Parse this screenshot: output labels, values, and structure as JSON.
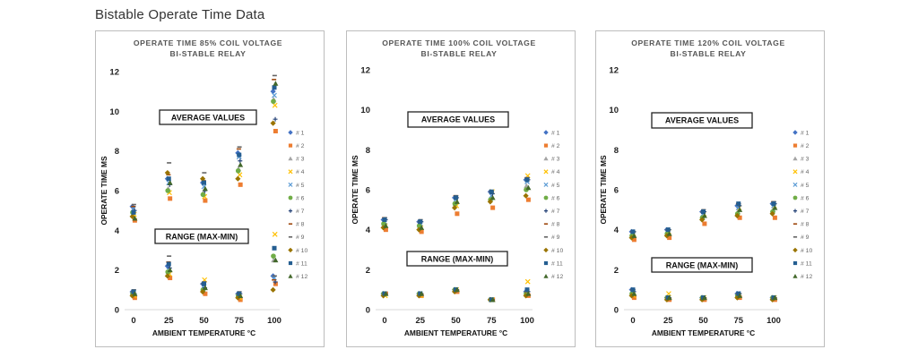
{
  "page_title": "Bistable Operate Time Data",
  "chart_data": [
    {
      "type": "scatter",
      "title": [
        "OPERATE TIME 85% COIL VOLTAGE",
        "BI-STABLE RELAY"
      ],
      "xlabel": "AMBIENT TEMPERATURE °C",
      "ylabel": "OPERATE TIME MS",
      "x": [
        0,
        25,
        50,
        75,
        100
      ],
      "xlim": [
        0,
        100
      ],
      "ylim": [
        0,
        12
      ],
      "yticks": [
        0,
        2,
        4,
        6,
        8,
        10,
        12
      ],
      "annotations": [
        "AVERAGE VALUES",
        "RANGE (MAX-MIN)"
      ],
      "series": [
        {
          "name": "# 1",
          "values": [
            5.2,
            6.6,
            6.4,
            7.9,
            11.0
          ],
          "range": [
            0.9,
            2.2,
            1.3,
            0.8,
            1.7
          ]
        },
        {
          "name": "# 2",
          "values": [
            4.5,
            5.6,
            5.5,
            6.3,
            9.0
          ],
          "range": [
            0.6,
            1.6,
            0.8,
            0.5,
            1.3
          ]
        },
        {
          "name": "# 3",
          "values": [
            5.0,
            6.1,
            5.9,
            7.1,
            10.6
          ],
          "range": [
            0.8,
            1.9,
            1.0,
            0.7,
            2.5
          ]
        },
        {
          "name": "# 4",
          "values": [
            4.8,
            5.9,
            5.7,
            6.8,
            10.3
          ],
          "range": [
            0.7,
            1.8,
            1.5,
            0.6,
            3.8
          ]
        },
        {
          "name": "# 5",
          "values": [
            5.1,
            6.4,
            6.2,
            7.7,
            10.8
          ],
          "range": [
            0.9,
            2.0,
            1.2,
            0.8,
            1.6
          ]
        },
        {
          "name": "# 6",
          "values": [
            4.9,
            6.0,
            5.8,
            7.0,
            10.5
          ],
          "range": [
            0.8,
            1.9,
            1.0,
            0.7,
            2.7
          ]
        },
        {
          "name": "# 7",
          "values": [
            5.0,
            6.3,
            6.0,
            7.5,
            9.6
          ],
          "range": [
            0.8,
            2.1,
            1.1,
            0.8,
            1.4
          ]
        },
        {
          "name": "# 8",
          "values": [
            5.2,
            6.8,
            6.5,
            8.1,
            11.6
          ],
          "range": [
            0.9,
            2.4,
            1.3,
            0.8,
            1.5
          ]
        },
        {
          "name": "# 9",
          "values": [
            5.3,
            7.4,
            6.9,
            8.2,
            11.8
          ],
          "range": [
            1.0,
            2.7,
            1.4,
            0.9,
            1.7
          ]
        },
        {
          "name": "# 10",
          "values": [
            4.7,
            6.9,
            6.6,
            6.6,
            9.4
          ],
          "range": [
            0.7,
            1.7,
            0.9,
            0.6,
            1.0
          ]
        },
        {
          "name": "# 11",
          "values": [
            4.9,
            6.6,
            6.4,
            7.8,
            11.2
          ],
          "range": [
            0.9,
            2.3,
            1.3,
            0.8,
            3.1
          ]
        },
        {
          "name": "# 12",
          "values": [
            4.6,
            6.4,
            6.1,
            7.3,
            11.4
          ],
          "range": [
            0.8,
            2.0,
            1.1,
            0.7,
            2.5
          ]
        }
      ]
    },
    {
      "type": "scatter",
      "title": [
        "OPERATE TIME 100% COIL VOLTAGE",
        "BI-STABLE RELAY"
      ],
      "xlabel": "AMBIENT TEMPERATURE °C",
      "ylabel": "OPERATE TIME MS",
      "x": [
        0,
        25,
        50,
        75,
        100
      ],
      "xlim": [
        0,
        100
      ],
      "ylim": [
        0,
        12
      ],
      "yticks": [
        0,
        2,
        4,
        6,
        8,
        10,
        12
      ],
      "annotations": [
        "AVERAGE VALUES",
        "RANGE (MAX-MIN)"
      ],
      "series": [
        {
          "name": "# 1",
          "values": [
            4.5,
            4.4,
            5.6,
            5.9,
            6.5
          ],
          "range": [
            0.8,
            0.8,
            1.0,
            0.5,
            0.9
          ]
        },
        {
          "name": "# 2",
          "values": [
            4.0,
            3.9,
            4.8,
            5.1,
            5.5
          ],
          "range": [
            0.8,
            0.7,
            0.9,
            0.5,
            0.7
          ]
        },
        {
          "name": "# 3",
          "values": [
            4.3,
            4.2,
            5.3,
            5.6,
            6.2
          ],
          "range": [
            0.8,
            0.8,
            1.0,
            0.5,
            0.8
          ]
        },
        {
          "name": "# 4",
          "values": [
            4.2,
            4.1,
            5.2,
            5.9,
            6.7
          ],
          "range": [
            0.7,
            0.7,
            1.0,
            0.5,
            1.4
          ]
        },
        {
          "name": "# 5",
          "values": [
            4.4,
            4.3,
            5.5,
            5.7,
            6.4
          ],
          "range": [
            0.8,
            0.8,
            1.0,
            0.5,
            0.9
          ]
        },
        {
          "name": "# 6",
          "values": [
            4.3,
            4.2,
            5.3,
            5.5,
            6.0
          ],
          "range": [
            0.8,
            0.8,
            1.0,
            0.5,
            0.8
          ]
        },
        {
          "name": "# 7",
          "values": [
            4.5,
            4.4,
            5.6,
            5.8,
            6.5
          ],
          "range": [
            0.8,
            0.8,
            1.0,
            0.5,
            0.9
          ]
        },
        {
          "name": "# 8",
          "values": [
            4.6,
            4.4,
            5.7,
            5.9,
            6.6
          ],
          "range": [
            0.8,
            0.8,
            1.0,
            0.5,
            0.9
          ]
        },
        {
          "name": "# 9",
          "values": [
            4.6,
            4.5,
            5.7,
            5.9,
            6.6
          ],
          "range": [
            0.8,
            0.8,
            1.0,
            0.5,
            0.9
          ]
        },
        {
          "name": "# 10",
          "values": [
            4.1,
            4.0,
            5.1,
            5.4,
            5.7
          ],
          "range": [
            0.7,
            0.7,
            0.9,
            0.5,
            0.7
          ]
        },
        {
          "name": "# 11",
          "values": [
            4.5,
            4.4,
            5.6,
            5.9,
            6.5
          ],
          "range": [
            0.8,
            0.8,
            1.0,
            0.5,
            1.0
          ]
        },
        {
          "name": "# 12",
          "values": [
            4.2,
            4.1,
            5.4,
            5.6,
            6.1
          ],
          "range": [
            0.8,
            0.8,
            1.0,
            0.5,
            0.8
          ]
        }
      ]
    },
    {
      "type": "scatter",
      "title": [
        "OPERATE TIME 120% COIL VOLTAGE",
        "BI-STABLE RELAY"
      ],
      "xlabel": "AMBIENT TEMPERATURE °C",
      "ylabel": "OPERATE TIME MS",
      "x": [
        0,
        25,
        50,
        75,
        100
      ],
      "xlim": [
        0,
        100
      ],
      "ylim": [
        0,
        12
      ],
      "yticks": [
        0,
        2,
        4,
        6,
        8,
        10,
        12
      ],
      "annotations": [
        "AVERAGE VALUES",
        "RANGE (MAX-MIN)"
      ],
      "series": [
        {
          "name": "# 1",
          "values": [
            3.9,
            4.0,
            4.9,
            5.2,
            5.3
          ],
          "range": [
            1.0,
            0.6,
            0.6,
            0.8,
            0.6
          ]
        },
        {
          "name": "# 2",
          "values": [
            3.5,
            3.6,
            4.3,
            4.6,
            4.6
          ],
          "range": [
            0.6,
            0.5,
            0.5,
            0.6,
            0.5
          ]
        },
        {
          "name": "# 3",
          "values": [
            3.7,
            3.8,
            4.6,
            4.9,
            5.0
          ],
          "range": [
            0.8,
            0.6,
            0.6,
            0.7,
            0.6
          ]
        },
        {
          "name": "# 4",
          "values": [
            3.8,
            3.9,
            4.8,
            5.1,
            5.2
          ],
          "range": [
            0.7,
            0.8,
            0.6,
            0.7,
            0.6
          ]
        },
        {
          "name": "# 5",
          "values": [
            3.8,
            3.9,
            4.8,
            5.1,
            5.2
          ],
          "range": [
            0.9,
            0.6,
            0.6,
            0.8,
            0.6
          ]
        },
        {
          "name": "# 6",
          "values": [
            3.7,
            3.8,
            4.6,
            4.8,
            4.9
          ],
          "range": [
            0.8,
            0.6,
            0.6,
            0.7,
            0.6
          ]
        },
        {
          "name": "# 7",
          "values": [
            3.9,
            4.0,
            4.9,
            5.2,
            5.3
          ],
          "range": [
            0.9,
            0.6,
            0.6,
            0.8,
            0.6
          ]
        },
        {
          "name": "# 8",
          "values": [
            3.9,
            4.0,
            4.9,
            5.3,
            5.4
          ],
          "range": [
            1.0,
            0.6,
            0.6,
            0.8,
            0.6
          ]
        },
        {
          "name": "# 9",
          "values": [
            3.9,
            4.0,
            5.0,
            5.3,
            5.4
          ],
          "range": [
            1.0,
            0.6,
            0.6,
            0.8,
            0.6
          ]
        },
        {
          "name": "# 10",
          "values": [
            3.6,
            3.7,
            4.5,
            4.7,
            4.8
          ],
          "range": [
            0.7,
            0.5,
            0.5,
            0.6,
            0.5
          ]
        },
        {
          "name": "# 11",
          "values": [
            3.9,
            4.0,
            4.9,
            5.3,
            5.3
          ],
          "range": [
            1.0,
            0.6,
            0.6,
            0.8,
            0.6
          ]
        },
        {
          "name": "# 12",
          "values": [
            3.7,
            3.8,
            4.7,
            5.0,
            5.1
          ],
          "range": [
            0.8,
            0.6,
            0.6,
            0.7,
            0.6
          ]
        }
      ]
    }
  ],
  "series_styles": [
    {
      "color": "#4472c4",
      "marker": "diamond"
    },
    {
      "color": "#ed7d31",
      "marker": "square"
    },
    {
      "color": "#a5a5a5",
      "marker": "triangle"
    },
    {
      "color": "#ffc000",
      "marker": "x"
    },
    {
      "color": "#5b9bd5",
      "marker": "x"
    },
    {
      "color": "#70ad47",
      "marker": "circle"
    },
    {
      "color": "#264478",
      "marker": "plus"
    },
    {
      "color": "#9e480e",
      "marker": "dash"
    },
    {
      "color": "#636363",
      "marker": "dash"
    },
    {
      "color": "#997300",
      "marker": "diamond"
    },
    {
      "color": "#255e91",
      "marker": "square"
    },
    {
      "color": "#43682b",
      "marker": "triangle"
    }
  ]
}
